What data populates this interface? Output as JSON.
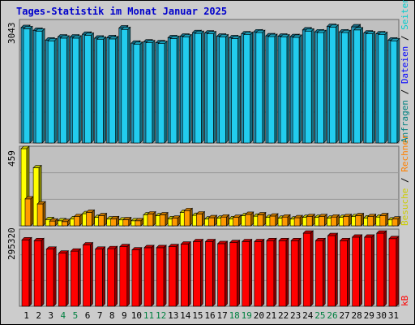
{
  "title": "Tages-Statistik im Monat Januar 2025",
  "colors": {
    "frame_bg": "#cccccc",
    "plot_bg": "#c0c0c0",
    "title": "#0000cc",
    "hits_front": "#22ccee",
    "files_front": "#1e8fb0",
    "pages_front": "#ff9900",
    "visits_front": "#ffff00",
    "kbytes_front": "#ff0000",
    "weekend_label": "#008040",
    "weekday_label": "#000000"
  },
  "right_legend": {
    "top": [
      {
        "text": "Anfragen",
        "color": "#008080"
      },
      {
        "text": " / ",
        "color": "#000000"
      },
      {
        "text": "Dateien",
        "color": "#0000ff"
      },
      {
        "text": " / ",
        "color": "#000000"
      },
      {
        "text": "Seiten",
        "color": "#00cccc"
      }
    ],
    "middle": [
      {
        "text": "Besuche",
        "color": "#cccc00"
      },
      {
        "text": " / ",
        "color": "#000000"
      },
      {
        "text": "Rechner",
        "color": "#ff8000"
      }
    ],
    "bottom": [
      {
        "text": "kB",
        "color": "#ff0000"
      }
    ]
  },
  "chart_data": [
    {
      "type": "bar",
      "name": "hits_files",
      "categories": [
        "1",
        "2",
        "3",
        "4",
        "5",
        "6",
        "7",
        "8",
        "9",
        "10",
        "11",
        "12",
        "13",
        "14",
        "15",
        "16",
        "17",
        "18",
        "19",
        "20",
        "21",
        "22",
        "23",
        "24",
        "25",
        "26",
        "27",
        "28",
        "29",
        "30",
        "31"
      ],
      "weekend": [
        false,
        false,
        false,
        true,
        true,
        false,
        false,
        false,
        false,
        false,
        true,
        true,
        false,
        false,
        false,
        false,
        false,
        true,
        true,
        false,
        false,
        false,
        false,
        false,
        true,
        true,
        false,
        false,
        false,
        false,
        false
      ],
      "ymax_label": "3043",
      "ylim": [
        0,
        3043
      ],
      "series": [
        {
          "name": "Anfragen",
          "values": [
            2960,
            2890,
            2640,
            2720,
            2720,
            2790,
            2690,
            2700,
            2950,
            2560,
            2590,
            2570,
            2700,
            2740,
            2830,
            2820,
            2740,
            2700,
            2800,
            2850,
            2750,
            2740,
            2730,
            2900,
            2850,
            2990,
            2850,
            2980,
            2820,
            2800,
            2640
          ]
        },
        {
          "name": "Dateien",
          "values": [
            2930,
            2870,
            2620,
            2690,
            2690,
            2760,
            2660,
            2670,
            2910,
            2530,
            2570,
            2550,
            2680,
            2720,
            2810,
            2800,
            2720,
            2680,
            2780,
            2830,
            2730,
            2720,
            2710,
            2870,
            2830,
            2970,
            2830,
            2900,
            2800,
            2780,
            2620
          ]
        }
      ]
    },
    {
      "type": "bar",
      "name": "pages_visits",
      "ymax_label": "459",
      "ylim": [
        0,
        459
      ],
      "series": [
        {
          "name": "Seiten",
          "values": [
            459,
            345,
            37,
            30,
            42,
            72,
            50,
            40,
            35,
            30,
            65,
            60,
            42,
            80,
            62,
            40,
            45,
            42,
            60,
            57,
            50,
            45,
            40,
            50,
            50,
            45,
            50,
            55,
            47,
            52,
            35
          ]
        },
        {
          "name": "Rechner",
          "values": [
            160,
            130,
            28,
            25,
            55,
            80,
            60,
            42,
            36,
            30,
            70,
            65,
            45,
            90,
            70,
            48,
            52,
            50,
            68,
            65,
            58,
            52,
            48,
            55,
            55,
            52,
            55,
            60,
            55,
            60,
            40
          ]
        }
      ]
    },
    {
      "type": "bar",
      "name": "kbytes",
      "ymax_label": "295320",
      "ylim": [
        0,
        295320
      ],
      "series": [
        {
          "name": "kB",
          "values": [
            265000,
            262000,
            228000,
            212000,
            220000,
            245000,
            228000,
            230000,
            238000,
            225000,
            234000,
            234000,
            238000,
            248000,
            258000,
            258000,
            250000,
            254000,
            258000,
            258000,
            262000,
            262000,
            262000,
            292000,
            262000,
            282000,
            262000,
            276000,
            276000,
            292000,
            270000
          ]
        }
      ]
    }
  ]
}
